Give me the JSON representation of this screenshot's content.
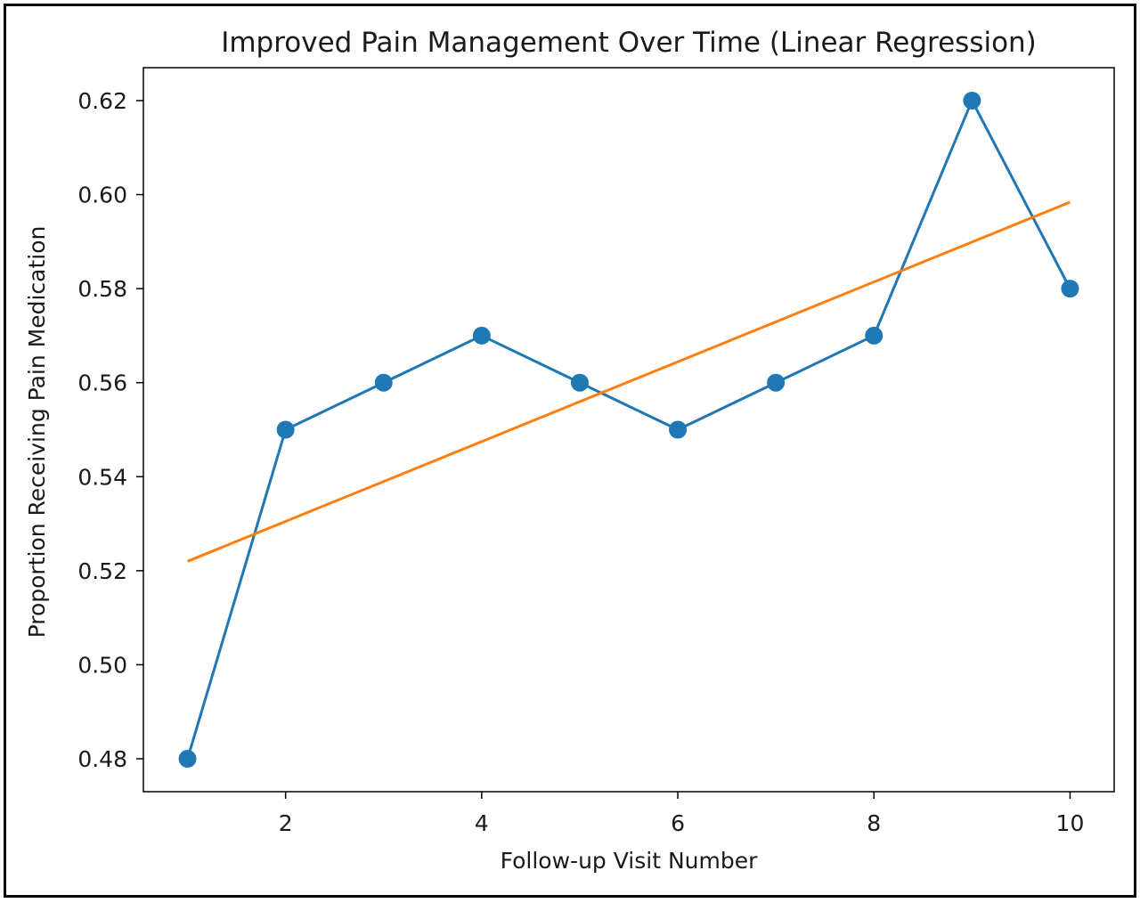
{
  "chart_data": {
    "type": "line",
    "title": "Improved Pain Management Over Time (Linear Regression)",
    "xlabel": "Follow-up Visit Number",
    "ylabel": "Proportion Receiving Pain Medication",
    "xlim": [
      0.55,
      10.45
    ],
    "ylim": [
      0.473,
      0.627
    ],
    "x_ticks": [
      2,
      4,
      6,
      8,
      10
    ],
    "y_ticks": [
      0.48,
      0.5,
      0.52,
      0.54,
      0.56,
      0.58,
      0.6,
      0.62
    ],
    "x_tick_labels": [
      "2",
      "4",
      "6",
      "8",
      "10"
    ],
    "y_tick_labels": [
      "0.48",
      "0.50",
      "0.52",
      "0.54",
      "0.56",
      "0.58",
      "0.60",
      "0.62"
    ],
    "grid": false,
    "series": [
      {
        "kind": "line-markers",
        "color": "#1f77b4",
        "x": [
          1,
          2,
          3,
          4,
          5,
          6,
          7,
          8,
          9,
          10
        ],
        "y": [
          0.48,
          0.55,
          0.56,
          0.57,
          0.56,
          0.55,
          0.56,
          0.57,
          0.62,
          0.58
        ]
      },
      {
        "kind": "regression-line",
        "color": "#ff7f0e",
        "x": [
          1,
          10
        ],
        "y": [
          0.522,
          0.5984
        ]
      }
    ]
  }
}
